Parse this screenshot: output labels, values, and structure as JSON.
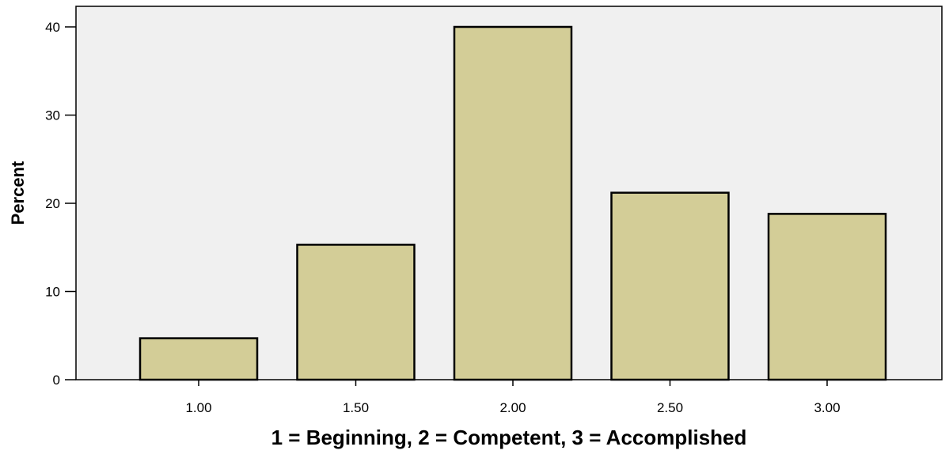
{
  "chart_data": {
    "type": "bar",
    "title": "",
    "xlabel": "1 = Beginning, 2 = Competent, 3 = Accomplished",
    "ylabel": "Percent",
    "categories": [
      "1.00",
      "1.50",
      "2.00",
      "2.50",
      "3.00"
    ],
    "values": [
      4.7,
      15.3,
      40.0,
      21.2,
      18.8
    ],
    "ylim": [
      0,
      40
    ],
    "yticks": [
      "0",
      "10",
      "20",
      "30",
      "40"
    ],
    "grid": false,
    "legend": "none",
    "colors": {
      "bar_fill": "#d3cd97",
      "bar_stroke": "#000000",
      "plot_background": "#f0f0f0",
      "axis": "#000000",
      "text": "#000000"
    }
  }
}
